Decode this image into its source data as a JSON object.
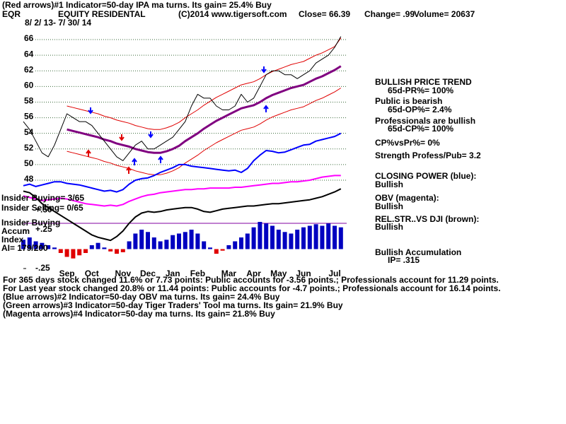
{
  "header": {
    "note": "(Red arrows)#1 Indicator=50-day IPA ma turns. Its gain= 25.4% Buy",
    "ticker": "EQR",
    "name": "EQUITY RESIDENTAL",
    "source": "(C)2014 www.tigersoft.com",
    "close": "Close= 66.39",
    "change": "Change= .99",
    "volume": "Volume= 20637",
    "dates": "8/ 2/ 13- 7/ 30/ 14"
  },
  "chart_data": [
    {
      "type": "line",
      "categories": [
        null,
        null,
        null,
        null,
        null,
        null,
        null,
        "Sep",
        null,
        null,
        null,
        "Oct",
        null,
        null,
        null,
        null,
        "Nov",
        null,
        null,
        null,
        "Dec",
        null,
        null,
        null,
        "Jan",
        null,
        null,
        null,
        "Feb",
        null,
        null,
        null,
        null,
        "Mar",
        null,
        null,
        null,
        "Apr",
        null,
        null,
        null,
        "May",
        null,
        null,
        null,
        "Jun",
        null,
        null,
        null,
        null,
        "Jul",
        null
      ],
      "ylim": [
        40,
        67.5
      ],
      "yticks": [
        48,
        50,
        52,
        54,
        56,
        58,
        60,
        62,
        64,
        66
      ],
      "grid": true,
      "series": [
        {
          "color": "#e00000",
          "values": [
            null,
            null,
            null,
            null,
            null,
            null,
            null,
            57.5,
            57.3,
            57.1,
            56.9,
            56.7,
            56.5,
            56.2,
            56,
            55.7,
            55.5,
            55.3,
            55,
            54.8,
            54.6,
            54.5,
            54.5,
            54.7,
            55,
            55.4,
            56,
            56.5,
            57,
            57.6,
            58.1,
            58.6,
            59,
            59.4,
            59.8,
            60.2,
            60.4,
            60.6,
            61,
            61.5,
            61.9,
            62.2,
            62.5,
            62.8,
            63,
            63.2,
            63.6,
            64,
            64.3,
            64.7,
            65.1,
            66.2
          ]
        },
        {
          "color": "#e00000",
          "values": [
            null,
            null,
            null,
            null,
            null,
            null,
            null,
            51.7,
            51.5,
            51.3,
            51.1,
            50.9,
            50.7,
            50.4,
            50.2,
            49.9,
            49.7,
            49.5,
            49.2,
            49,
            48.8,
            48.7,
            48.7,
            48.9,
            49.2,
            49.6,
            50.2,
            50.7,
            51.2,
            51.8,
            52.3,
            52.8,
            53.2,
            53.6,
            54,
            54.4,
            54.6,
            54.8,
            55.2,
            55.7,
            56.1,
            56.4,
            56.7,
            57,
            57.2,
            57.4,
            57.8,
            58.2,
            58.5,
            58.9,
            59.3,
            59.8
          ]
        },
        {
          "color": "#800080",
          "values": [
            null,
            null,
            null,
            null,
            null,
            null,
            null,
            54.5,
            54.3,
            54.1,
            53.9,
            53.7,
            53.5,
            53.2,
            53,
            52.7,
            52.5,
            52.3,
            52,
            51.8,
            51.6,
            51.5,
            51.5,
            51.7,
            52,
            52.4,
            53,
            53.5,
            54,
            54.6,
            55.1,
            55.6,
            56,
            56.4,
            56.8,
            57.2,
            57.4,
            57.6,
            58,
            58.5,
            58.9,
            59.2,
            59.5,
            59.8,
            60,
            60.2,
            60.6,
            61,
            61.3,
            61.7,
            62.1,
            62.6
          ]
        },
        {
          "color": "#000000",
          "values": [
            55.5,
            54.5,
            53,
            51.5,
            51,
            52.5,
            54.5,
            56.5,
            56,
            55.5,
            55.5,
            55,
            54,
            53,
            52,
            51,
            50.5,
            51.5,
            52.5,
            53,
            52,
            52,
            52.5,
            53,
            53.5,
            54.5,
            55.5,
            57.5,
            59,
            58.5,
            58.5,
            57.5,
            57,
            57,
            57.5,
            59,
            58,
            58.5,
            60,
            61.5,
            62,
            62,
            61.5,
            61.5,
            61,
            61.5,
            62,
            63,
            63.5,
            64,
            65,
            66.4
          ]
        },
        {
          "color": "#0000ff",
          "values": [
            47.3,
            47.5,
            47.2,
            47.4,
            47.6,
            47.8,
            47.8,
            47.6,
            47.5,
            47.4,
            47.2,
            47,
            46.8,
            46.6,
            46.7,
            46.5,
            46.8,
            47.5,
            48,
            48.2,
            48.3,
            48.6,
            49,
            49.3,
            49.6,
            50,
            50,
            49.8,
            49.7,
            49.6,
            49.5,
            49.4,
            49.3,
            49.2,
            49.3,
            49,
            49.5,
            50.5,
            51.2,
            51.8,
            51.7,
            51.5,
            51.6,
            51.9,
            52.2,
            52.5,
            52.6,
            53,
            53.2,
            53.4,
            53.6,
            54
          ]
        },
        {
          "color": "#ff00ff",
          "values": [
            46,
            45.8,
            45.6,
            45.4,
            45.5,
            45.6,
            45.7,
            45.6,
            45.4,
            45.2,
            45,
            44.9,
            44.8,
            44.7,
            44.8,
            44.7,
            44.9,
            45.3,
            45.6,
            45.9,
            46.1,
            46.2,
            46.4,
            46.5,
            46.6,
            46.7,
            46.8,
            46.8,
            46.9,
            46.9,
            47,
            47,
            47,
            47,
            47.1,
            47.1,
            47.2,
            47.3,
            47.4,
            47.5,
            47.6,
            47.6,
            47.7,
            47.8,
            47.8,
            47.9,
            48,
            48.2,
            48.4,
            48.5,
            48.6,
            48.6
          ]
        },
        {
          "color": "#000000",
          "values": [
            46.6,
            46.4,
            45.8,
            45,
            44.5,
            44,
            43.5,
            43,
            42.5,
            42,
            41.5,
            41,
            40.7,
            40.5,
            40.3,
            40.8,
            41.5,
            42.5,
            43.3,
            43.8,
            44,
            43.9,
            44,
            44.2,
            44.3,
            44.4,
            44.5,
            44.5,
            44.3,
            44,
            43.9,
            44.1,
            44.3,
            44.4,
            44.5,
            44.6,
            44.7,
            44.7,
            44.8,
            44.9,
            45,
            45,
            45.1,
            45.2,
            45.3,
            45.4,
            45.5,
            45.7,
            45.9,
            46.2,
            46.5,
            46.9
          ]
        }
      ]
    },
    {
      "type": "bar",
      "color": "#0000c0",
      "negative_color": "#e00000",
      "ylim": [
        -0.25,
        0.5
      ],
      "yticks": [
        {
          "value": 0.5,
          "label": "+.50"
        },
        {
          "value": 0.25,
          "label": "+.25"
        },
        {
          "value": -0.25,
          "label": "-.25"
        }
      ],
      "annotations": [
        "Insider Buying= 3/65",
        "Insider Selling= 0/65",
        "Insider Buying",
        "Accum",
        "Index",
        "AI= 179/200"
      ],
      "values": [
        0.12,
        0.15,
        0.1,
        0.08,
        0.05,
        0.02,
        -0.05,
        -0.1,
        -0.12,
        -0.08,
        -0.05,
        0.05,
        0.08,
        0.02,
        -0.03,
        -0.06,
        -0.04,
        0.1,
        0.2,
        0.25,
        0.22,
        0.15,
        0.1,
        0.12,
        0.18,
        0.2,
        0.22,
        0.25,
        0.2,
        0.1,
        0.02,
        -0.06,
        -0.02,
        0.05,
        0.1,
        0.15,
        0.2,
        0.28,
        0.35,
        0.33,
        0.3,
        0.25,
        0.22,
        0.2,
        0.25,
        0.28,
        0.3,
        0.32,
        0.3,
        0.33,
        0.3,
        0.28
      ]
    }
  ],
  "right_panel": [
    "BULLISH PRICE TREND",
    "65d-PR%= 100%",
    "Public is bearish",
    "65d-OP%= 2.4%",
    "Professionals are bullish",
    "65d-CP%= 100%",
    "CP%vsPr%=  0%",
    "Strength Profess/Pub= 3.2",
    "CLOSING POWER (blue):",
    "Bullish",
    "OBV (magenta):",
    "Bullish",
    "REL.STR..VS DJI (brown):",
    "Bullish",
    "Bullish Accumulation",
    "IP=  .315"
  ],
  "footer": [
    "For 365 days stock changed  11.6% or  7.73 points:  Public accounts for -3.56 points.;  Professionals account for  11.29 points.",
    "For Last year stock changed  20.8% or  11.44 points:  Public accounts for -4.7 points.;  Professionals account for  16.14 points.",
    "(Blue arrows)#2 Indicator=50-day OBV ma turns. Its gain= 24.4% Buy",
    "(Green arrows)#3 Indicator=50-day Tiger Traders' Tool ma turns. Its gain= 21.9% Buy",
    "(Magenta arrows)#4 Indicator=50-day ma turns. Its gain= 21.8% Buy"
  ]
}
